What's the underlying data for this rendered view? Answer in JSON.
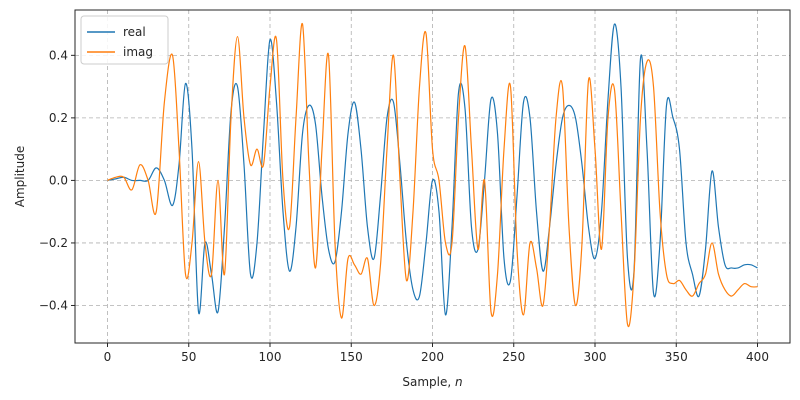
{
  "chart_data": {
    "type": "line",
    "title": "",
    "xlabel": "Sample, ",
    "xlabel_italic": "n",
    "ylabel": "Amplitude",
    "xlim": [
      -20,
      420
    ],
    "ylim": [
      -0.52,
      0.545
    ],
    "xticks": [
      0,
      50,
      100,
      150,
      200,
      250,
      300,
      350,
      400
    ],
    "yticks": [
      -0.4,
      -0.2,
      0.0,
      0.2,
      0.4
    ],
    "ytick_labels": [
      "−0.4",
      "−0.2",
      "0.0",
      "0.2",
      "0.4"
    ],
    "grid": true,
    "legend_position": "top-left",
    "series": [
      {
        "name": "real",
        "color": "#1f77b4",
        "x": [
          0,
          5,
          10,
          15,
          20,
          25,
          30,
          35,
          40,
          44,
          48,
          52,
          56,
          60,
          64,
          68,
          72,
          76,
          80,
          84,
          88,
          92,
          96,
          100,
          104,
          108,
          112,
          116,
          120,
          124,
          128,
          132,
          136,
          140,
          144,
          148,
          152,
          156,
          160,
          164,
          168,
          172,
          176,
          180,
          184,
          188,
          192,
          196,
          200,
          204,
          208,
          212,
          216,
          220,
          224,
          228,
          232,
          236,
          240,
          244,
          248,
          252,
          256,
          260,
          264,
          268,
          272,
          276,
          280,
          284,
          288,
          292,
          296,
          300,
          304,
          308,
          312,
          316,
          320,
          324,
          328,
          332,
          336,
          340,
          344,
          348,
          352,
          356,
          360,
          364,
          368,
          372,
          376,
          380,
          384,
          388,
          392,
          396,
          400
        ],
        "y": [
          0,
          0.005,
          0.01,
          0.0,
          0.0,
          0.0,
          0.04,
          0.0,
          -0.08,
          0.05,
          0.31,
          0.1,
          -0.42,
          -0.2,
          -0.3,
          -0.42,
          -0.15,
          0.22,
          0.3,
          0.05,
          -0.3,
          -0.2,
          0.15,
          0.45,
          0.25,
          -0.1,
          -0.29,
          -0.15,
          0.15,
          0.24,
          0.18,
          -0.05,
          -0.22,
          -0.26,
          -0.1,
          0.15,
          0.25,
          0.1,
          -0.15,
          -0.25,
          -0.05,
          0.2,
          0.25,
          0.05,
          -0.2,
          -0.35,
          -0.37,
          -0.2,
          0.0,
          -0.1,
          -0.43,
          -0.15,
          0.28,
          0.23,
          -0.15,
          -0.22,
          0.0,
          0.26,
          0.15,
          -0.25,
          -0.32,
          -0.05,
          0.25,
          0.2,
          -0.1,
          -0.29,
          -0.15,
          0.05,
          0.2,
          0.24,
          0.2,
          0.05,
          -0.15,
          -0.25,
          -0.1,
          0.26,
          0.5,
          0.3,
          -0.25,
          -0.29,
          0.39,
          0.1,
          -0.36,
          -0.2,
          0.24,
          0.2,
          0.1,
          -0.2,
          -0.3,
          -0.37,
          -0.22,
          0.03,
          -0.15,
          -0.27,
          -0.28,
          -0.28,
          -0.27,
          -0.27,
          -0.28
        ],
        "y_note": "real values"
      },
      {
        "name": "imag",
        "color": "#ff7f0e",
        "x": [
          0,
          5,
          10,
          15,
          20,
          25,
          30,
          35,
          40,
          44,
          48,
          52,
          56,
          60,
          64,
          68,
          72,
          76,
          80,
          84,
          88,
          92,
          96,
          100,
          104,
          108,
          112,
          116,
          120,
          124,
          128,
          132,
          136,
          140,
          144,
          148,
          152,
          156,
          160,
          164,
          168,
          172,
          176,
          180,
          184,
          188,
          192,
          196,
          200,
          204,
          208,
          212,
          216,
          220,
          224,
          228,
          232,
          236,
          240,
          244,
          248,
          252,
          256,
          260,
          264,
          268,
          272,
          276,
          280,
          284,
          288,
          292,
          296,
          300,
          304,
          308,
          312,
          316,
          320,
          324,
          328,
          332,
          336,
          340,
          344,
          348,
          352,
          356,
          360,
          364,
          368,
          372,
          376,
          380,
          384,
          388,
          392,
          396,
          400
        ],
        "y": [
          0,
          0.01,
          0.01,
          -0.03,
          0.05,
          0.0,
          -0.1,
          0.25,
          0.4,
          0.1,
          -0.3,
          -0.2,
          0.06,
          -0.2,
          -0.3,
          0.0,
          -0.3,
          0.2,
          0.46,
          0.2,
          0.05,
          0.1,
          0.05,
          0.3,
          0.45,
          0.0,
          -0.15,
          0.2,
          0.5,
          0.05,
          -0.28,
          0.1,
          0.4,
          -0.2,
          -0.44,
          -0.25,
          -0.27,
          -0.3,
          -0.25,
          -0.4,
          -0.27,
          0.1,
          0.4,
          0.0,
          -0.32,
          -0.1,
          0.3,
          0.47,
          0.1,
          0.0,
          -0.2,
          -0.2,
          0.2,
          0.43,
          0.1,
          -0.22,
          0.0,
          -0.42,
          -0.3,
          0.1,
          0.3,
          -0.22,
          -0.43,
          -0.2,
          -0.28,
          -0.4,
          -0.15,
          0.2,
          0.3,
          -0.15,
          -0.4,
          -0.2,
          0.32,
          0.1,
          -0.22,
          0.2,
          0.29,
          -0.1,
          -0.46,
          -0.3,
          0.2,
          0.38,
          0.3,
          -0.1,
          -0.3,
          -0.33,
          -0.32,
          -0.35,
          -0.37,
          -0.33,
          -0.3,
          -0.2,
          -0.3,
          -0.35,
          -0.37,
          -0.35,
          -0.33,
          -0.34,
          -0.34
        ],
        "y_note": "imag values"
      }
    ]
  }
}
